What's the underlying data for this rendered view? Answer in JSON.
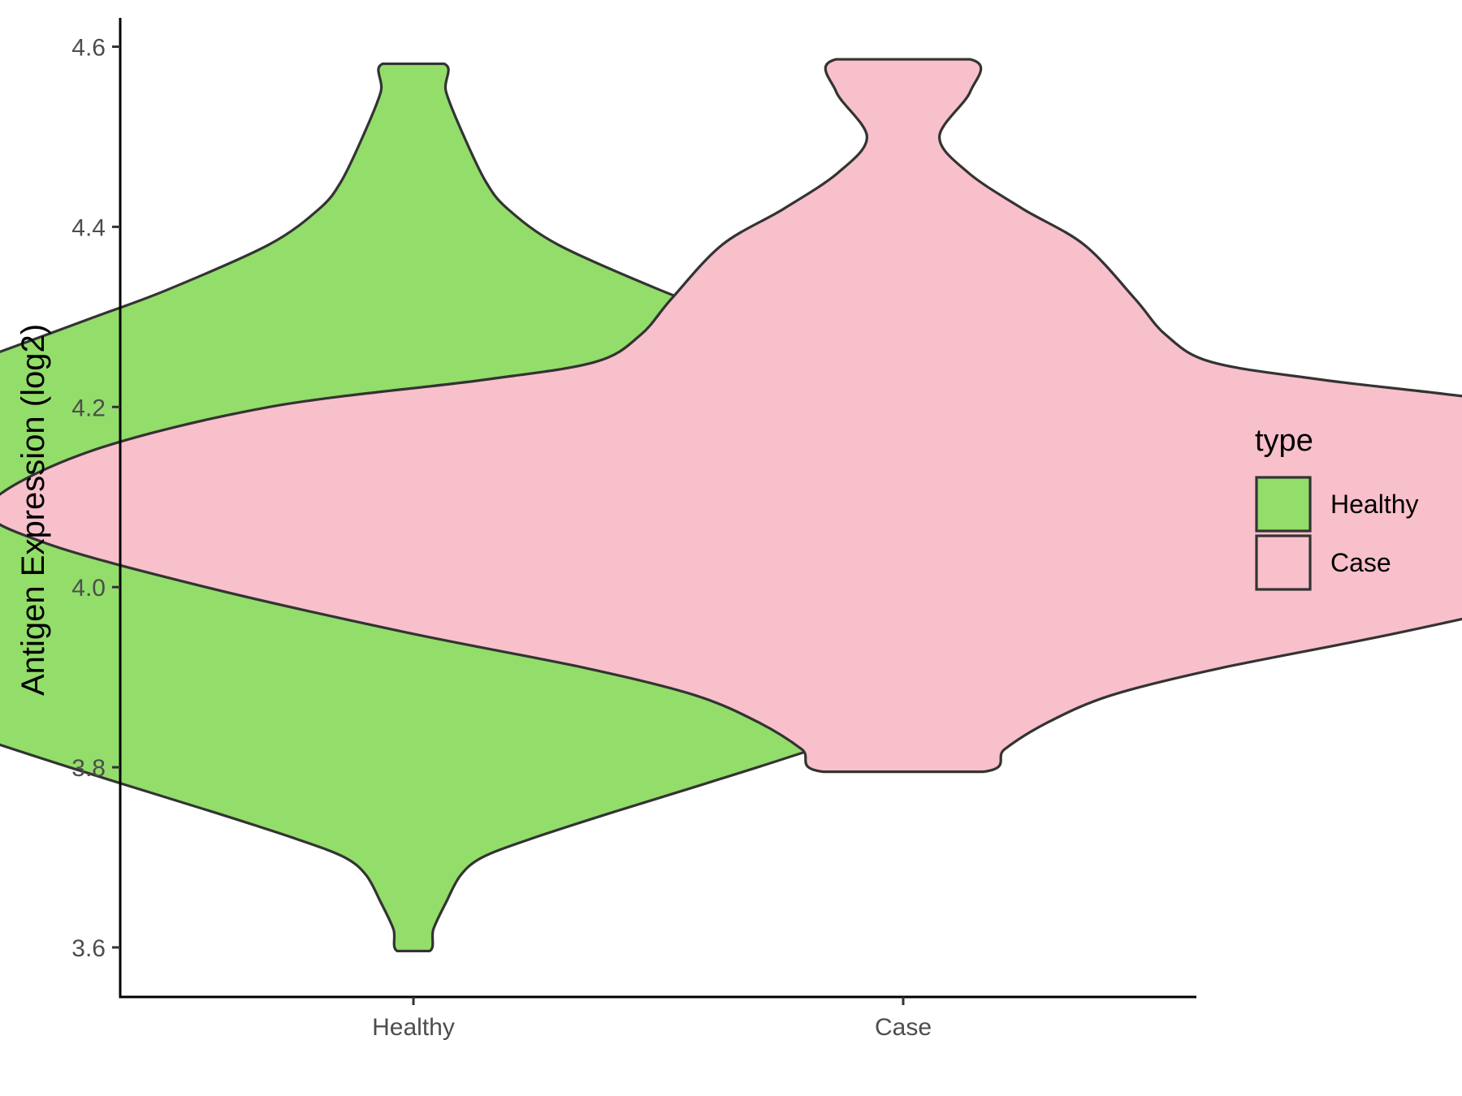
{
  "chart_data": {
    "type": "violin",
    "ylabel": "Antigen Expression (log2)",
    "xlabel": "",
    "categories": [
      "Healthy",
      "Case"
    ],
    "ylim": [
      3.545,
      4.632
    ],
    "yticks": [
      "3.6",
      "3.8",
      "4.0",
      "4.2",
      "4.4",
      "4.6"
    ],
    "legend": {
      "title": "type",
      "position": "right",
      "entries": [
        "Healthy",
        "Case"
      ]
    },
    "grid": false,
    "series": [
      {
        "category": "Healthy",
        "color": "#93dd6a",
        "min": 3.596,
        "max": 4.581,
        "density": [
          [
            3.596,
            0.009
          ],
          [
            3.62,
            0.011
          ],
          [
            3.65,
            0.018
          ],
          [
            3.68,
            0.026
          ],
          [
            3.7,
            0.038
          ],
          [
            3.72,
            0.064
          ],
          [
            3.75,
            0.11
          ],
          [
            3.8,
            0.19
          ],
          [
            3.85,
            0.265
          ],
          [
            3.88,
            0.3
          ],
          [
            3.91,
            0.335
          ],
          [
            3.95,
            0.372
          ],
          [
            4.0,
            0.42
          ],
          [
            4.05,
            0.498
          ],
          [
            4.1,
            0.46
          ],
          [
            4.15,
            0.396
          ],
          [
            4.2,
            0.318
          ],
          [
            4.25,
            0.244
          ],
          [
            4.3,
            0.176
          ],
          [
            4.33,
            0.136
          ],
          [
            4.38,
            0.08
          ],
          [
            4.42,
            0.052
          ],
          [
            4.45,
            0.04
          ],
          [
            4.5,
            0.028
          ],
          [
            4.55,
            0.018
          ],
          [
            4.581,
            0.017
          ]
        ]
      },
      {
        "category": "Case",
        "color": "#f8c0cb",
        "min": 3.795,
        "max": 4.586,
        "density": [
          [
            3.795,
            0.044
          ],
          [
            3.82,
            0.056
          ],
          [
            3.85,
            0.08
          ],
          [
            3.88,
            0.115
          ],
          [
            3.91,
            0.175
          ],
          [
            3.95,
            0.275
          ],
          [
            4.0,
            0.385
          ],
          [
            4.05,
            0.475
          ],
          [
            4.09,
            0.505
          ],
          [
            4.15,
            0.45
          ],
          [
            4.2,
            0.35
          ],
          [
            4.23,
            0.232
          ],
          [
            4.25,
            0.17
          ],
          [
            4.28,
            0.145
          ],
          [
            4.32,
            0.128
          ],
          [
            4.38,
            0.1
          ],
          [
            4.42,
            0.066
          ],
          [
            4.46,
            0.036
          ],
          [
            4.5,
            0.02
          ],
          [
            4.55,
            0.037
          ],
          [
            4.586,
            0.037
          ]
        ]
      }
    ]
  },
  "colors": {
    "outline": "#333333",
    "axis": "#000000"
  }
}
